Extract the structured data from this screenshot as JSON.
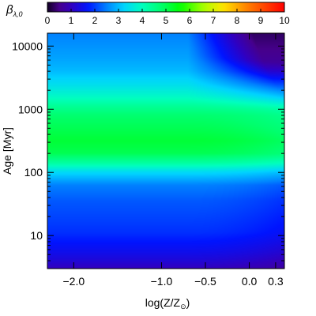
{
  "chart_data": {
    "type": "heatmap",
    "title": "",
    "xlabel": "log(Z/Z",
    "xlabel_subscript": "⊙",
    "xlabel_suffix": ")",
    "ylabel": "Age [Myr]",
    "x_scale": "linear",
    "y_scale": "log",
    "xlim": [
      -2.3,
      0.4
    ],
    "ylim": [
      3,
      16000
    ],
    "xticks": [
      -2.0,
      -1.0,
      -0.5,
      0.0,
      0.3
    ],
    "xtick_labels": [
      "−2.0",
      "−1.0",
      "−0.5",
      "0.0",
      "0.3"
    ],
    "yticks": [
      10,
      100,
      1000,
      10000
    ],
    "ytick_labels": [
      "10",
      "100",
      "1000",
      "10000"
    ],
    "colorbar": {
      "label": "β",
      "label_subscript": "λ,0",
      "range": [
        0,
        10
      ],
      "ticks": [
        0,
        1,
        2,
        3,
        4,
        5,
        6,
        7,
        8,
        9,
        10
      ],
      "tick_labels": [
        "0",
        "1",
        "2",
        "3",
        "4",
        "5",
        "6",
        "7",
        "8",
        "9",
        "10"
      ],
      "colormap": "rainbow",
      "placement": "top"
    },
    "z_profile": {
      "log_age": [
        0.48,
        0.6,
        0.75,
        0.9,
        1.05,
        1.3,
        1.55,
        1.8,
        2.0,
        2.15,
        2.3,
        2.5,
        2.7,
        2.9,
        3.05,
        3.2,
        3.4,
        3.6,
        3.8,
        4.0,
        4.2
      ],
      "beta": [
        1.0,
        1.25,
        1.5,
        1.7,
        1.9,
        2.05,
        2.2,
        2.5,
        3.3,
        4.3,
        5.0,
        5.2,
        5.0,
        4.8,
        4.4,
        3.9,
        3.4,
        3.0,
        2.8,
        2.65,
        2.5
      ]
    },
    "high_metallicity_drop": {
      "onset_log_z": -0.7,
      "onset_log_age": 3.0,
      "max_beta_reduction": 2.2
    }
  }
}
